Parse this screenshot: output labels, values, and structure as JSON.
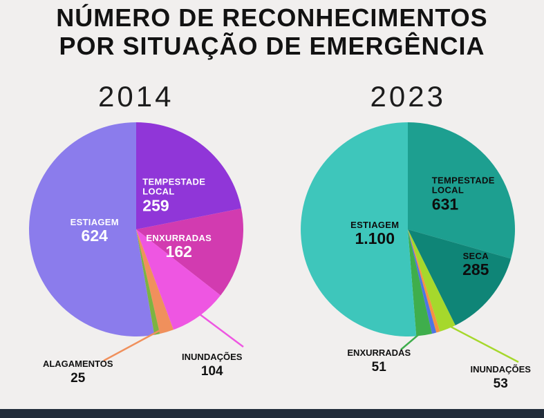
{
  "page": {
    "title_line1": "NÚMERO DE RECONHECIMENTOS",
    "title_line2": "POR SITUAÇÃO DE EMERGÊNCIA",
    "background": "#f1efee",
    "footer_color": "#222d3a"
  },
  "chart_data": [
    {
      "type": "pie",
      "title": "2014",
      "year": "2014",
      "text_color": "#ffffff",
      "legend_position": "inside-and-callouts",
      "slices": [
        {
          "label": "TEMPESTADE LOCAL",
          "label_lines": [
            "TEMPESTADE",
            "LOCAL"
          ],
          "value": 259,
          "display": "259",
          "color": "#9036d8",
          "label_at": [
            215,
            112
          ],
          "align": "left"
        },
        {
          "label": "ENXURRADAS",
          "value": 162,
          "display": "162",
          "color": "#d23bb0",
          "label_at": [
            222,
            186
          ]
        },
        {
          "label": "INUNDAÇÕES",
          "value": 104,
          "display": "104",
          "color": "#ee56e2",
          "callout": {
            "line_to": [
              315,
              330
            ],
            "label_at": [
              270,
              358
            ],
            "line_color": "#ee56e2"
          }
        },
        {
          "label": "ALAGAMENTOS",
          "value": 25,
          "display": "25",
          "color": "#f0905c",
          "callout": {
            "line_to": [
              113,
              350
            ],
            "label_at": [
              76,
              368
            ],
            "line_color": "#f0905c"
          }
        },
        {
          "label": "",
          "value": 10,
          "display": "",
          "color": "#7cb342"
        },
        {
          "label": "ESTIAGEM",
          "value": 624,
          "display": "624",
          "color": "#8b7cec",
          "label_at": [
            100,
            163
          ]
        }
      ]
    },
    {
      "type": "pie",
      "title": "2023",
      "year": "2023",
      "text_color": "#0d0d0d",
      "legend_position": "inside-and-callouts",
      "slices": [
        {
          "label": "TEMPESTADE LOCAL",
          "label_lines": [
            "TEMPESTADE",
            "LOCAL"
          ],
          "value": 631,
          "display": "631",
          "color": "#1d9f90",
          "label_at": [
            240,
            110
          ],
          "align": "left"
        },
        {
          "label": "SECA",
          "value": 285,
          "display": "285",
          "color": "#0f8577",
          "label_at": [
            258,
            212
          ]
        },
        {
          "label": "INUNDAÇÕES",
          "value": 53,
          "display": "53",
          "color": "#a6d82c",
          "callout": {
            "line_to": [
              320,
              352
            ],
            "label_at": [
              294,
              376
            ],
            "line_color": "#a6d82c"
          }
        },
        {
          "label": "",
          "value": 12,
          "display": "",
          "color": "#f59342"
        },
        {
          "label": "",
          "value": 14,
          "display": "",
          "color": "#4f74e3"
        },
        {
          "label": "ENXURRADAS",
          "value": 51,
          "display": "51",
          "color": "#3fae4c",
          "callout": {
            "line_to": [
              150,
              334
            ],
            "label_at": [
              118,
              352
            ],
            "line_color": "#3fae4c"
          }
        },
        {
          "label": "ESTIAGEM",
          "value": 1100,
          "display": "1.100",
          "color": "#3ec6bb",
          "label_at": [
            112,
            167
          ]
        }
      ]
    }
  ]
}
